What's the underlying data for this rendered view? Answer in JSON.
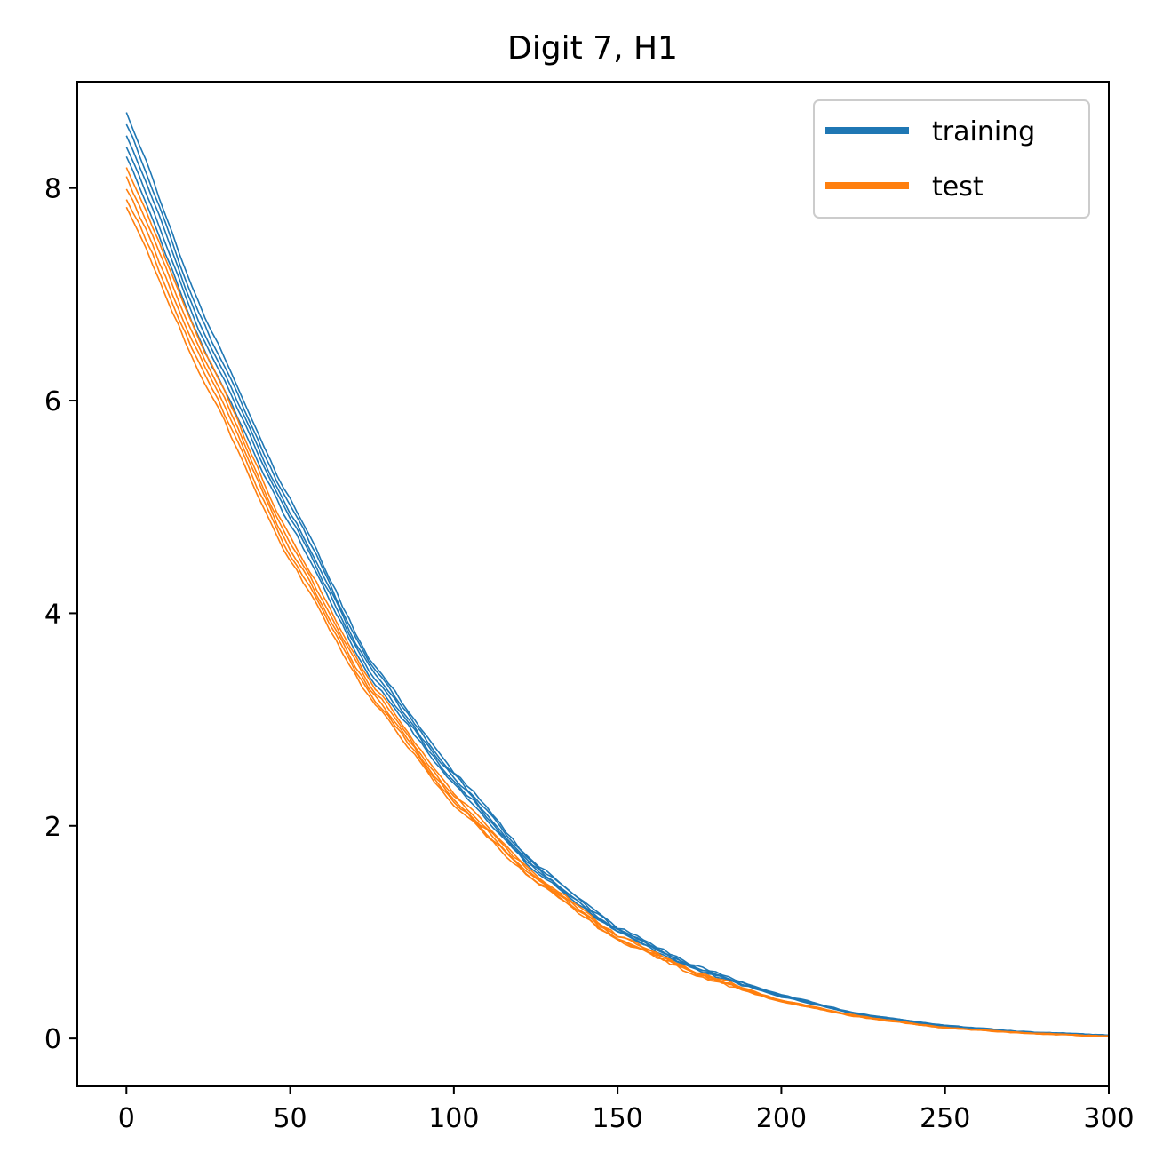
{
  "chart_data": {
    "type": "line",
    "title": "Digit 7, H1",
    "xlabel": "",
    "ylabel": "",
    "xlim": [
      -15,
      300
    ],
    "ylim": [
      -0.45,
      9.0
    ],
    "xticks": [
      0,
      50,
      100,
      150,
      200,
      250,
      300
    ],
    "yticks": [
      0,
      2,
      4,
      6,
      8
    ],
    "grid": false,
    "legend": {
      "position": "top-right",
      "entries": [
        "training",
        "test"
      ]
    },
    "colors": {
      "training": "#1f77b4",
      "test": "#ff7f0e"
    },
    "series": [
      {
        "name": "training",
        "runs": 5,
        "x": [
          0,
          25,
          50,
          75,
          100,
          125,
          150,
          175,
          200,
          225,
          250,
          275,
          300
        ],
        "values": [
          8.5,
          6.55,
          4.95,
          3.45,
          2.45,
          1.6,
          1.02,
          0.65,
          0.4,
          0.22,
          0.12,
          0.06,
          0.03
        ]
      },
      {
        "name": "test",
        "runs": 5,
        "x": [
          0,
          25,
          50,
          75,
          100,
          125,
          150,
          175,
          200,
          225,
          250,
          275,
          300
        ],
        "values": [
          8.0,
          6.25,
          4.6,
          3.25,
          2.25,
          1.5,
          0.95,
          0.6,
          0.35,
          0.2,
          0.1,
          0.05,
          0.02
        ]
      }
    ]
  }
}
